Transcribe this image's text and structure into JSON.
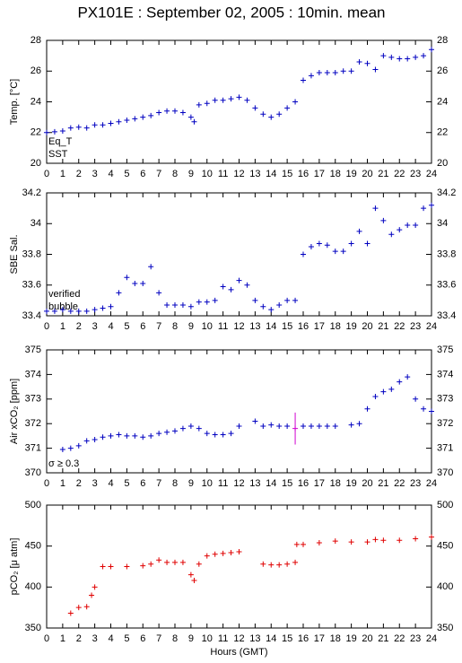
{
  "title": "PX101E : September 02, 2005 : 10min. mean",
  "chart_data": [
    {
      "type": "scatter",
      "ylabel": "Temp. [°C]",
      "xlim": [
        0,
        24
      ],
      "xticks": [
        0,
        1,
        2,
        3,
        4,
        5,
        6,
        7,
        8,
        9,
        10,
        11,
        12,
        13,
        14,
        15,
        16,
        17,
        18,
        19,
        20,
        21,
        22,
        23,
        24
      ],
      "ylim": [
        20,
        28
      ],
      "yticks": [
        20,
        22,
        24,
        26,
        28
      ],
      "series": [
        {
          "name": "Eq_T",
          "color": "#e00000",
          "x": [],
          "values": []
        },
        {
          "name": "SST",
          "color": "#0000c0",
          "x": [
            0,
            0.5,
            1,
            1.5,
            2,
            2.5,
            3,
            3.5,
            4,
            4.5,
            5,
            5.5,
            6,
            6.5,
            7,
            7.5,
            8,
            8.5,
            9,
            9.2,
            9.5,
            10,
            10.5,
            11,
            11.5,
            12,
            12.5,
            13,
            13.5,
            14,
            14.5,
            15,
            15.5,
            16,
            16.5,
            17,
            17.5,
            18,
            18.5,
            19,
            19.5,
            20,
            20.5,
            21,
            21.5,
            22,
            22.5,
            23,
            23.5,
            24
          ],
          "values": [
            22.0,
            22.05,
            22.1,
            22.3,
            22.35,
            22.3,
            22.5,
            22.5,
            22.6,
            22.7,
            22.8,
            22.9,
            23.0,
            23.1,
            23.3,
            23.4,
            23.4,
            23.3,
            23.0,
            22.7,
            23.8,
            23.9,
            24.1,
            24.1,
            24.2,
            24.3,
            24.1,
            23.6,
            23.2,
            23.0,
            23.2,
            23.6,
            24.0,
            25.4,
            25.7,
            25.9,
            25.9,
            25.9,
            26.0,
            26.0,
            26.6,
            26.5,
            26.1,
            27.0,
            26.9,
            26.8,
            26.8,
            26.9,
            27.0,
            27.4
          ]
        }
      ]
    },
    {
      "type": "scatter",
      "ylabel": "SBE Sal.",
      "xlim": [
        0,
        24
      ],
      "xticks": [
        0,
        1,
        2,
        3,
        4,
        5,
        6,
        7,
        8,
        9,
        10,
        11,
        12,
        13,
        14,
        15,
        16,
        17,
        18,
        19,
        20,
        21,
        22,
        23,
        24
      ],
      "ylim": [
        33.4,
        34.2
      ],
      "yticks": [
        33.4,
        33.6,
        33.8,
        34,
        34.2
      ],
      "series": [
        {
          "name": "verified",
          "color": "#0000c0",
          "x": [
            0,
            0.5,
            1,
            1.5,
            2,
            2.5,
            3,
            3.5,
            4,
            4.5,
            5,
            5.5,
            6,
            6.5,
            7,
            7.5,
            8,
            8.5,
            9,
            9.5,
            10,
            10.5,
            11,
            11.5,
            12,
            12.5,
            13,
            13.5,
            14,
            14.5,
            15,
            15.5,
            16,
            16.5,
            17,
            17.5,
            18,
            18.5,
            19,
            19.5,
            20,
            20.5,
            21,
            21.5,
            22,
            22.5,
            23,
            23.5,
            24
          ],
          "values": [
            33.43,
            33.43,
            33.44,
            33.43,
            33.43,
            33.43,
            33.44,
            33.45,
            33.46,
            33.55,
            33.65,
            33.61,
            33.61,
            33.72,
            33.55,
            33.47,
            33.47,
            33.47,
            33.46,
            33.49,
            33.49,
            33.5,
            33.59,
            33.57,
            33.63,
            33.6,
            33.5,
            33.46,
            33.44,
            33.47,
            33.5,
            33.5,
            33.8,
            33.85,
            33.87,
            33.86,
            33.82,
            33.82,
            33.87,
            33.95,
            33.87,
            34.1,
            34.02,
            33.93,
            33.96,
            33.99,
            33.99,
            34.1,
            34.12
          ]
        },
        {
          "name": "bubble",
          "color": "#d000d0",
          "x": [],
          "values": []
        }
      ]
    },
    {
      "type": "scatter",
      "ylabel": "Air xCO₂ [ppm]",
      "xlim": [
        0,
        24
      ],
      "xticks": [
        0,
        1,
        2,
        3,
        4,
        5,
        6,
        7,
        8,
        9,
        10,
        11,
        12,
        13,
        14,
        15,
        16,
        17,
        18,
        19,
        20,
        21,
        22,
        23,
        24
      ],
      "ylim": [
        370,
        375
      ],
      "yticks": [
        370,
        371,
        372,
        373,
        374,
        375
      ],
      "series": [
        {
          "color": "#0000c0",
          "x": [
            1,
            1.5,
            2,
            2.5,
            3,
            3.5,
            4,
            4.5,
            5,
            5.5,
            6,
            6.5,
            7,
            7.5,
            8,
            8.5,
            9,
            9.5,
            10,
            10.5,
            11,
            11.5,
            12,
            13,
            13.5,
            14,
            14.5,
            15,
            16,
            16.5,
            17,
            17.5,
            18,
            19,
            19.5,
            20,
            20.5,
            21,
            21.5,
            22,
            22.5,
            23,
            23.5,
            24
          ],
          "values": [
            370.95,
            371.0,
            371.1,
            371.3,
            371.35,
            371.45,
            371.5,
            371.55,
            371.5,
            371.5,
            371.45,
            371.5,
            371.6,
            371.65,
            371.7,
            371.8,
            371.9,
            371.8,
            371.6,
            371.55,
            371.55,
            371.6,
            371.9,
            372.1,
            371.9,
            371.95,
            371.9,
            371.9,
            371.9,
            371.9,
            371.9,
            371.9,
            371.9,
            371.95,
            372.0,
            372.6,
            373.1,
            373.3,
            373.4,
            373.7,
            373.9,
            373.0,
            372.6,
            372.5
          ]
        },
        {
          "name": "σ ≥ 0.3",
          "color": "#d000d0",
          "x": [
            15.5
          ],
          "values": [
            371.8
          ],
          "errors": [
            0.65
          ]
        }
      ]
    },
    {
      "type": "scatter",
      "ylabel": "pCO₂ [μ atm]",
      "xlabel": "Hours (GMT)",
      "xlim": [
        0,
        24
      ],
      "xticks": [
        0,
        1,
        2,
        3,
        4,
        5,
        6,
        7,
        8,
        9,
        10,
        11,
        12,
        13,
        14,
        15,
        16,
        17,
        18,
        19,
        20,
        21,
        22,
        23,
        24
      ],
      "ylim": [
        350,
        500
      ],
      "yticks": [
        350,
        400,
        450,
        500
      ],
      "series": [
        {
          "color": "#e00000",
          "x": [
            1.5,
            2,
            2.5,
            2.8,
            3,
            3.5,
            4,
            5,
            6,
            6.5,
            7,
            7.5,
            8,
            8.5,
            9,
            9.2,
            9.5,
            10,
            10.5,
            11,
            11.5,
            12,
            13.5,
            14,
            14.5,
            15,
            15.5,
            15.6,
            16,
            17,
            18,
            19,
            20,
            20.5,
            21,
            22,
            23,
            24
          ],
          "values": [
            368,
            375,
            376,
            390,
            400,
            425,
            425,
            425,
            426,
            428,
            433,
            430,
            430,
            430,
            415,
            408,
            428,
            438,
            440,
            441,
            442,
            443,
            428,
            427,
            427,
            428,
            430,
            452,
            452,
            454,
            456,
            455,
            455,
            458,
            457,
            457,
            459,
            461
          ]
        }
      ]
    }
  ]
}
